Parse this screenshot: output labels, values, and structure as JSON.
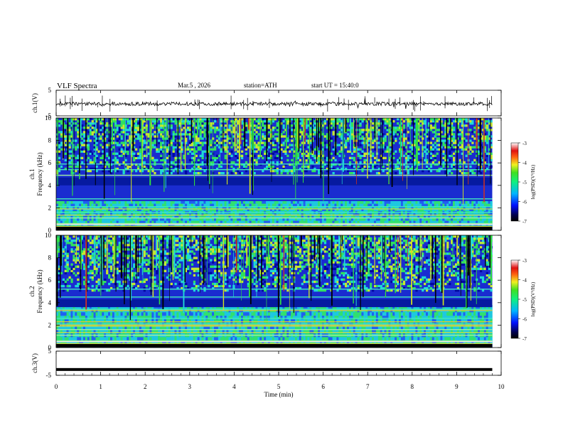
{
  "header": {
    "title": "VLF Spectra",
    "date": "Mar.5 , 2026",
    "station": "station=ATH",
    "start_ut": "start UT = 15:40:0"
  },
  "colors": {
    "spectrogram_bg": "#1a2cd0",
    "noise_band": "#1fe0a8",
    "green": "#2ddc2a",
    "yellow": "#f0e820",
    "red": "#d8301c",
    "black": "#000000"
  },
  "chart_data": [
    {
      "id": "ch1-waveform",
      "type": "line",
      "ylabel": "ch.1(V)",
      "ylim": [
        -5,
        5
      ],
      "yticks": [
        "5",
        "-5"
      ],
      "xlim": [
        0,
        10
      ],
      "description_values": {
        "baseline_v": -0.3,
        "spike_range_v": [
          -2.5,
          1.8
        ]
      }
    },
    {
      "id": "ch1-spectrogram",
      "type": "heatmap",
      "ylabel_line1": "ch.1",
      "ylabel_line2": "Frequency (kHz)",
      "ylim": [
        0,
        10
      ],
      "yticks": [
        "0",
        "2",
        "4",
        "6",
        "8",
        "10"
      ],
      "xlim": [
        0,
        10
      ],
      "colorbar": {
        "label": "log(PSD)(V²/Hz)",
        "range": [
          -7,
          -3
        ],
        "ticks": [
          "-3",
          "-4",
          "-5",
          "-6",
          "-7"
        ]
      },
      "bands_khz": [
        0.6,
        1.1,
        1.6,
        2.1,
        2.8,
        4.9,
        5.4,
        5.9
      ]
    },
    {
      "id": "ch2-spectrogram",
      "type": "heatmap",
      "ylabel_line1": "ch.2",
      "ylabel_line2": "Frequency (kHz)",
      "ylim": [
        0,
        10
      ],
      "yticks": [
        "0",
        "2",
        "4",
        "6",
        "8",
        "10"
      ],
      "xlim": [
        0,
        10
      ],
      "colorbar": {
        "label": "log(PSD)(V²/Hz)",
        "range": [
          -7,
          -3
        ],
        "ticks": [
          "-3",
          "-4",
          "-5",
          "-6",
          "-7"
        ]
      },
      "bands_khz": [
        0.6,
        1.1,
        1.6,
        2.1,
        2.6,
        3.4,
        4.5,
        5.2
      ]
    },
    {
      "id": "ch3-waveform",
      "type": "line",
      "ylabel": "ch.3(V)",
      "ylim": [
        -5,
        5
      ],
      "yticks": [
        "5",
        "-5"
      ],
      "xlim": [
        0,
        10
      ],
      "description_values": {
        "baseline_v": -2.6
      }
    }
  ],
  "xaxis": {
    "label": "Time (min)",
    "ticks": [
      "0",
      "1",
      "2",
      "3",
      "4",
      "5",
      "6",
      "7",
      "8",
      "9",
      "10"
    ],
    "data_end_min": 9.8
  }
}
